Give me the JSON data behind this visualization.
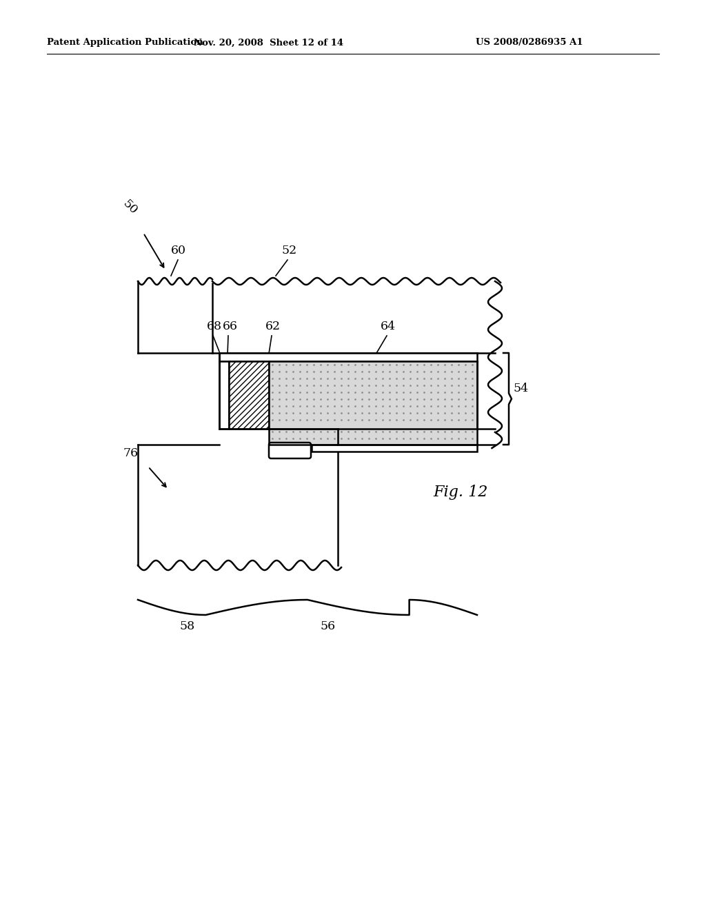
{
  "header_left": "Patent Application Publication",
  "header_mid": "Nov. 20, 2008  Sheet 12 of 14",
  "header_right": "US 2008/0286935 A1",
  "fig_label": "Fig. 12",
  "label_50": "50",
  "label_52": "52",
  "label_54": "54",
  "label_56": "56",
  "label_58": "58",
  "label_60": "60",
  "label_62": "62",
  "label_64": "64",
  "label_66": "66",
  "label_68": "68",
  "label_76": "76",
  "line_color": "#000000",
  "dot_fill_color": "#d8d8d8",
  "background_color": "#ffffff"
}
